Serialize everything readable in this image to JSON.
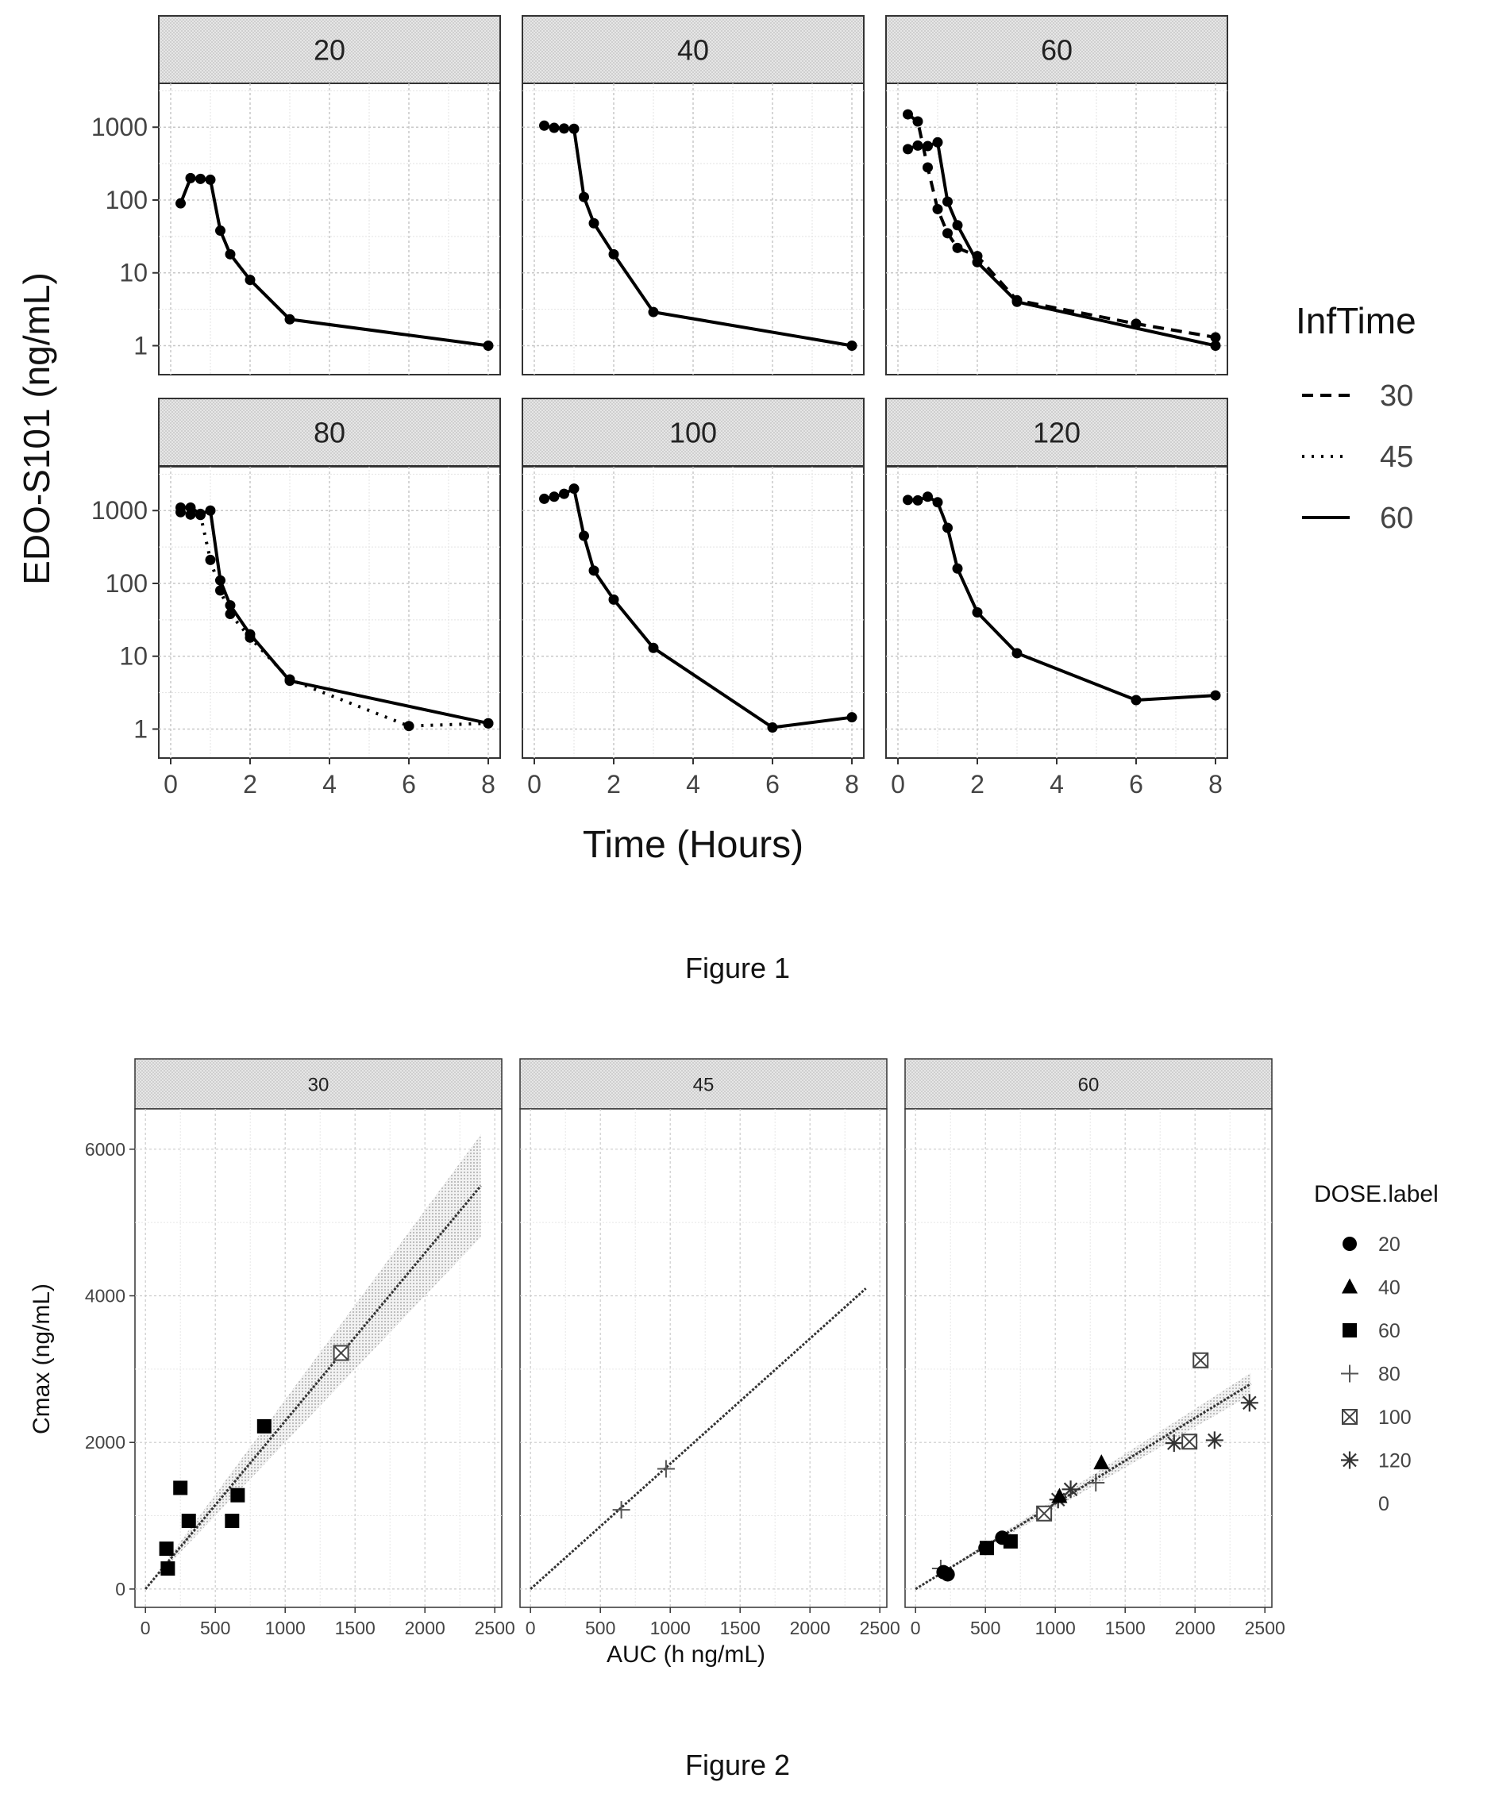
{
  "chart_data": [
    {
      "type": "line",
      "caption": "Figure 1",
      "xlabel": "Time (Hours)",
      "ylabel": "EDO-S101 (ng/mL)",
      "xlim": [
        -0.3,
        8.3
      ],
      "ylim": [
        0.4,
        4000
      ],
      "yscale": "log",
      "xticks": [
        0,
        2,
        4,
        6,
        8
      ],
      "yticks": [
        1,
        10,
        100,
        1000
      ],
      "grid": true,
      "legend": {
        "title": "InfTime",
        "placement": "right",
        "entries": [
          {
            "label": "30",
            "dash": "dashed"
          },
          {
            "label": "45",
            "dash": "dotted"
          },
          {
            "label": "60",
            "dash": "solid"
          }
        ]
      },
      "panels": [
        {
          "label": "20",
          "series": [
            {
              "name": "60",
              "x": [
                0.25,
                0.5,
                0.75,
                1.0,
                1.25,
                1.5,
                2,
                3,
                8
              ],
              "y": [
                90,
                200,
                195,
                190,
                38,
                18,
                8,
                2.3,
                1.0
              ]
            }
          ]
        },
        {
          "label": "40",
          "series": [
            {
              "name": "60",
              "x": [
                0.25,
                0.5,
                0.75,
                1.0,
                1.25,
                1.5,
                2,
                3,
                8
              ],
              "y": [
                1050,
                980,
                960,
                950,
                110,
                48,
                18,
                2.9,
                1.0
              ]
            }
          ]
        },
        {
          "label": "60",
          "series": [
            {
              "name": "30",
              "x": [
                0.25,
                0.5,
                0.75,
                1.0,
                1.25,
                1.5,
                2,
                3,
                6,
                8
              ],
              "y": [
                1500,
                1200,
                280,
                75,
                35,
                22,
                17,
                4.2,
                2.0,
                1.3
              ]
            },
            {
              "name": "60",
              "x": [
                0.25,
                0.5,
                0.75,
                1.0,
                1.25,
                1.5,
                2,
                3,
                8
              ],
              "y": [
                500,
                560,
                550,
                620,
                95,
                45,
                14,
                4.0,
                1.0
              ]
            }
          ]
        },
        {
          "label": "80",
          "series": [
            {
              "name": "45",
              "x": [
                0.25,
                0.5,
                0.75,
                1.0,
                1.25,
                1.5,
                2,
                3,
                6,
                8
              ],
              "y": [
                950,
                880,
                870,
                210,
                80,
                38,
                18,
                4.8,
                1.1,
                1.2
              ]
            },
            {
              "name": "60",
              "x": [
                0.25,
                0.5,
                0.75,
                1.0,
                1.25,
                1.5,
                2,
                3,
                8
              ],
              "y": [
                1100,
                1100,
                900,
                1000,
                110,
                50,
                20,
                4.6,
                1.2
              ]
            }
          ]
        },
        {
          "label": "100",
          "series": [
            {
              "name": "60",
              "x": [
                0.25,
                0.5,
                0.75,
                1.0,
                1.25,
                1.5,
                2,
                3,
                6,
                8
              ],
              "y": [
                1450,
                1550,
                1700,
                2000,
                450,
                150,
                60,
                13,
                1.05,
                1.45
              ]
            }
          ]
        },
        {
          "label": "120",
          "series": [
            {
              "name": "60",
              "x": [
                0.25,
                0.5,
                0.75,
                1.0,
                1.25,
                1.5,
                2,
                3,
                6,
                8
              ],
              "y": [
                1400,
                1380,
                1550,
                1300,
                580,
                160,
                40,
                11,
                2.5,
                2.9
              ]
            }
          ]
        }
      ]
    },
    {
      "type": "scatter",
      "caption": "Figure 2",
      "xlabel": "AUC (h ng/mL)",
      "ylabel": "Cmax (ng/mL)",
      "xlim": [
        -75,
        2550
      ],
      "ylim": [
        -250,
        6550
      ],
      "xticks": [
        0,
        500,
        1000,
        1500,
        2000,
        2500
      ],
      "yticks": [
        0,
        2000,
        4000,
        6000
      ],
      "grid": true,
      "legend": {
        "title": "DOSE.label",
        "placement": "right",
        "entries": [
          {
            "label": "20",
            "shape": "circle"
          },
          {
            "label": "40",
            "shape": "triangle"
          },
          {
            "label": "60",
            "shape": "square"
          },
          {
            "label": "80",
            "shape": "plus"
          },
          {
            "label": "100",
            "shape": "square-x"
          },
          {
            "label": "120",
            "shape": "asterisk"
          },
          {
            "label": "0",
            "shape": "none"
          }
        ]
      },
      "panels": [
        {
          "label": "30",
          "fit": {
            "x": [
              0,
              2400
            ],
            "y": [
              0,
              5500
            ],
            "ci_low": [
              0,
              4800
            ],
            "ci_high": [
              0,
              6200
            ]
          },
          "points": [
            {
              "dose": "60",
              "x": 150,
              "y": 550
            },
            {
              "dose": "60",
              "x": 160,
              "y": 280
            },
            {
              "dose": "60",
              "x": 250,
              "y": 1380
            },
            {
              "dose": "60",
              "x": 310,
              "y": 930
            },
            {
              "dose": "60",
              "x": 620,
              "y": 930
            },
            {
              "dose": "60",
              "x": 660,
              "y": 1280
            },
            {
              "dose": "60",
              "x": 850,
              "y": 2220
            },
            {
              "dose": "100",
              "x": 1400,
              "y": 3220
            }
          ]
        },
        {
          "label": "45",
          "fit": {
            "x": [
              0,
              2400
            ],
            "y": [
              0,
              4100
            ]
          },
          "points": [
            {
              "dose": "80",
              "x": 650,
              "y": 1080
            },
            {
              "dose": "80",
              "x": 970,
              "y": 1640
            }
          ]
        },
        {
          "label": "60",
          "fit": {
            "x": [
              0,
              2400
            ],
            "y": [
              0,
              2800
            ],
            "ci_low": [
              0,
              2650
            ],
            "ci_high": [
              0,
              2950
            ]
          },
          "points": [
            {
              "dose": "80",
              "x": 180,
              "y": 280
            },
            {
              "dose": "20",
              "x": 200,
              "y": 230
            },
            {
              "dose": "20",
              "x": 230,
              "y": 200
            },
            {
              "dose": "20",
              "x": 500,
              "y": 560
            },
            {
              "dose": "60",
              "x": 510,
              "y": 560
            },
            {
              "dose": "20",
              "x": 620,
              "y": 700
            },
            {
              "dose": "60",
              "x": 680,
              "y": 650
            },
            {
              "dose": "100",
              "x": 920,
              "y": 1030
            },
            {
              "dose": "120",
              "x": 1020,
              "y": 1220
            },
            {
              "dose": "40",
              "x": 1030,
              "y": 1260
            },
            {
              "dose": "120",
              "x": 1110,
              "y": 1360
            },
            {
              "dose": "80",
              "x": 1290,
              "y": 1450
            },
            {
              "dose": "40",
              "x": 1330,
              "y": 1720
            },
            {
              "dose": "120",
              "x": 1850,
              "y": 1990
            },
            {
              "dose": "100",
              "x": 1960,
              "y": 2010
            },
            {
              "dose": "100",
              "x": 2040,
              "y": 3120
            },
            {
              "dose": "120",
              "x": 2140,
              "y": 2030
            },
            {
              "dose": "120",
              "x": 2390,
              "y": 2540
            }
          ]
        }
      ]
    }
  ]
}
